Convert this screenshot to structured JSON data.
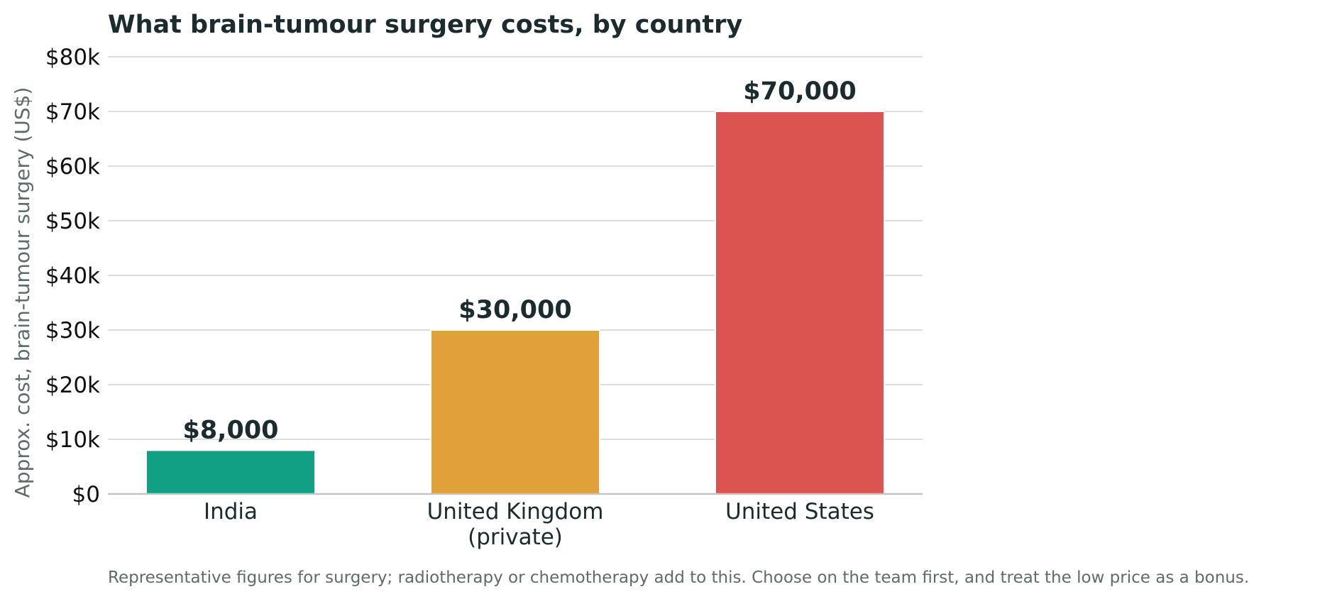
{
  "chart_data": {
    "type": "bar",
    "title": "What brain-tumour surgery costs, by country",
    "xlabel": "",
    "ylabel": "Approx. cost, brain-tumour surgery (US$)",
    "categories": [
      [
        "India"
      ],
      [
        "United Kingdom",
        "(private)"
      ],
      [
        "United States"
      ]
    ],
    "values": [
      8000,
      30000,
      70000
    ],
    "value_labels": [
      "$8,000",
      "$30,000",
      "$70,000"
    ],
    "bar_colors": [
      "#12a085",
      "#e0a03a",
      "#da5450"
    ],
    "ylim": [
      0,
      80000
    ],
    "yticks": [
      0,
      10000,
      20000,
      30000,
      40000,
      50000,
      60000,
      70000,
      80000
    ],
    "ytick_labels": [
      "$0",
      "$10k",
      "$20k",
      "$30k",
      "$40k",
      "$50k",
      "$60k",
      "$70k",
      "$80k"
    ],
    "grid": true,
    "legend": "none",
    "footnote": "Representative figures for surgery; radiotherapy or chemotherapy add to this. Choose on the team first, and treat the low price as a bonus."
  },
  "colors": {
    "title": "#1c2b2e",
    "value_label": "#1c2b2e",
    "tick_label": "#111111",
    "category_label": "#1c2b2e",
    "axis_label": "#5f6b6d",
    "footnote": "#5f6b6d",
    "grid": "#dddddd",
    "baseline": "#c4c4c4"
  }
}
